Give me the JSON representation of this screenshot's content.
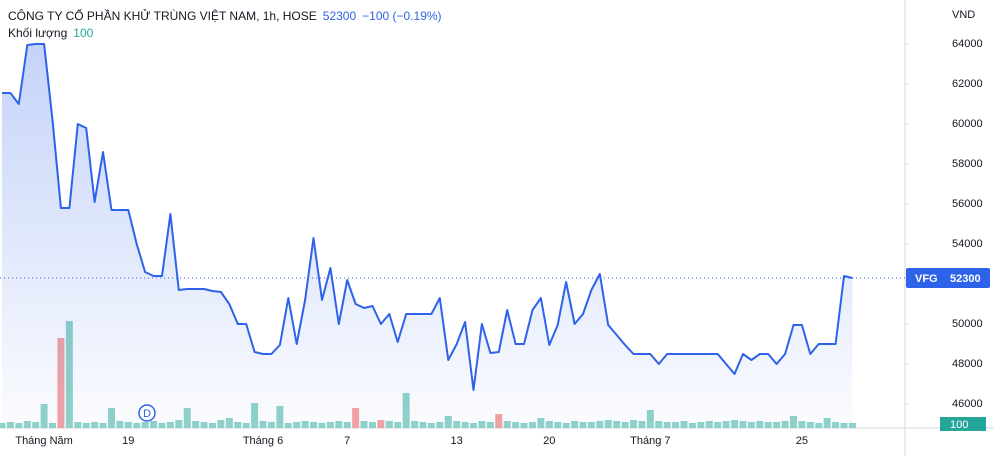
{
  "chart_data": {
    "type": "line",
    "title": "CÔNG TY CỔ PHẦN KHỬ TRÙNG VIỆT NAM, 1h, HOSE",
    "change": "−100 (−0.19%)",
    "volume_label": "Khối lượng",
    "y_unit": "VND",
    "symbol": "VFG",
    "marker": "D",
    "color": "#2e62e8",
    "categories": [
      null,
      null,
      null,
      null,
      null,
      "Tháng Năm",
      null,
      null,
      null,
      null,
      null,
      null,
      null,
      null,
      null,
      "19",
      null,
      null,
      null,
      null,
      null,
      null,
      null,
      null,
      null,
      null,
      null,
      null,
      null,
      null,
      null,
      "Tháng 6",
      null,
      null,
      null,
      null,
      null,
      null,
      null,
      null,
      null,
      "7",
      null,
      null,
      null,
      null,
      null,
      null,
      null,
      null,
      null,
      null,
      null,
      null,
      "13",
      null,
      null,
      null,
      null,
      null,
      null,
      null,
      null,
      null,
      null,
      "20",
      null,
      null,
      null,
      null,
      null,
      null,
      null,
      null,
      null,
      null,
      null,
      "Tháng 7",
      null,
      null,
      null,
      null,
      null,
      null,
      null,
      null,
      null,
      null,
      null,
      null,
      null,
      null,
      null,
      null,
      null,
      "25",
      null,
      null,
      null,
      null,
      null,
      null
    ],
    "values": [
      61550,
      61550,
      61000,
      63950,
      64000,
      64000,
      60200,
      55800,
      55800,
      60000,
      59800,
      56100,
      58600,
      55700,
      55700,
      55700,
      54000,
      52600,
      52400,
      52400,
      55500,
      51700,
      51750,
      51750,
      51750,
      51650,
      51600,
      51000,
      50000,
      50000,
      48600,
      48500,
      48500,
      48950,
      51300,
      49000,
      51200,
      54300,
      51200,
      52800,
      50000,
      52200,
      51000,
      50800,
      50900,
      50000,
      50500,
      49100,
      50500,
      50500,
      50500,
      50500,
      51300,
      48200,
      49000,
      50100,
      46700,
      50000,
      48550,
      48600,
      50700,
      49000,
      49000,
      50700,
      51300,
      48950,
      49950,
      52100,
      50000,
      50500,
      51700,
      52500,
      49950,
      49450,
      48950,
      48500,
      48500,
      48500,
      48000,
      48500,
      48500,
      48500,
      48500,
      48500,
      48500,
      48500,
      48000,
      47500,
      48500,
      48200,
      48500,
      48500,
      48000,
      48500,
      49950,
      49950,
      48500,
      49000,
      49000,
      49000,
      52400,
      52300
    ],
    "volume": {
      "values": [
        100,
        120,
        100,
        140,
        120,
        480,
        100,
        1800,
        2140,
        120,
        100,
        120,
        100,
        400,
        140,
        120,
        100,
        120,
        140,
        100,
        120,
        160,
        400,
        140,
        120,
        100,
        160,
        200,
        120,
        100,
        500,
        140,
        120,
        440,
        100,
        120,
        140,
        120,
        100,
        120,
        140,
        120,
        400,
        140,
        120,
        160,
        140,
        120,
        700,
        140,
        120,
        100,
        120,
        240,
        140,
        120,
        100,
        140,
        120,
        280,
        140,
        120,
        100,
        120,
        200,
        140,
        120,
        100,
        140,
        120,
        120,
        140,
        160,
        140,
        120,
        160,
        140,
        360,
        140,
        120,
        120,
        140,
        100,
        120,
        140,
        120,
        140,
        160,
        140,
        120,
        140,
        120,
        120,
        140,
        240,
        140,
        120,
        100,
        200,
        120,
        100,
        100
      ],
      "colors": [
        "#8fd3c9",
        "#8fd3c9",
        "#8fd3c9",
        "#8fd3c9",
        "#8fd3c9",
        "#8fd3c9",
        "#8fd3c9",
        "#f3a3a3",
        "#8fd3c9",
        "#8fd3c9",
        "#8fd3c9",
        "#8fd3c9",
        "#8fd3c9",
        "#8fd3c9",
        "#8fd3c9",
        "#8fd3c9",
        "#8fd3c9",
        "#8fd3c9",
        "#8fd3c9",
        "#8fd3c9",
        "#8fd3c9",
        "#8fd3c9",
        "#8fd3c9",
        "#8fd3c9",
        "#8fd3c9",
        "#8fd3c9",
        "#8fd3c9",
        "#8fd3c9",
        "#8fd3c9",
        "#8fd3c9",
        "#8fd3c9",
        "#8fd3c9",
        "#8fd3c9",
        "#8fd3c9",
        "#8fd3c9",
        "#8fd3c9",
        "#8fd3c9",
        "#8fd3c9",
        "#8fd3c9",
        "#8fd3c9",
        "#8fd3c9",
        "#8fd3c9",
        "#f3a3a3",
        "#8fd3c9",
        "#8fd3c9",
        "#f3a3a3",
        "#8fd3c9",
        "#8fd3c9",
        "#8fd3c9",
        "#8fd3c9",
        "#8fd3c9",
        "#8fd3c9",
        "#8fd3c9",
        "#8fd3c9",
        "#8fd3c9",
        "#8fd3c9",
        "#8fd3c9",
        "#8fd3c9",
        "#8fd3c9",
        "#f3a3a3",
        "#8fd3c9",
        "#8fd3c9",
        "#8fd3c9",
        "#8fd3c9",
        "#8fd3c9",
        "#8fd3c9",
        "#8fd3c9",
        "#8fd3c9",
        "#8fd3c9",
        "#8fd3c9",
        "#8fd3c9",
        "#8fd3c9",
        "#8fd3c9",
        "#8fd3c9",
        "#8fd3c9",
        "#8fd3c9",
        "#8fd3c9",
        "#8fd3c9",
        "#8fd3c9",
        "#8fd3c9",
        "#8fd3c9",
        "#8fd3c9",
        "#8fd3c9",
        "#8fd3c9",
        "#8fd3c9",
        "#8fd3c9",
        "#8fd3c9",
        "#8fd3c9",
        "#8fd3c9",
        "#8fd3c9",
        "#8fd3c9",
        "#8fd3c9",
        "#8fd3c9",
        "#8fd3c9",
        "#8fd3c9",
        "#8fd3c9",
        "#8fd3c9",
        "#8fd3c9",
        "#8fd3c9",
        "#8fd3c9",
        "#8fd3c9",
        "#8fd3c9"
      ]
    },
    "ylim": [
      44800,
      66200
    ],
    "yticks": [
      46000,
      48000,
      50000,
      52000,
      54000,
      56000,
      58000,
      60000,
      62000,
      64000
    ],
    "grid": false
  }
}
